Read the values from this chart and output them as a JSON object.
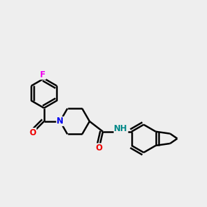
{
  "background_color": "#eeeeee",
  "bond_color": "#000000",
  "bond_width": 1.8,
  "atom_colors": {
    "F": "#ee00ee",
    "N": "#0000ee",
    "NH": "#008888",
    "O": "#ee0000",
    "C": "#000000"
  },
  "font_size": 8.5,
  "fig_size": [
    3.0,
    3.0
  ],
  "dpi": 100
}
